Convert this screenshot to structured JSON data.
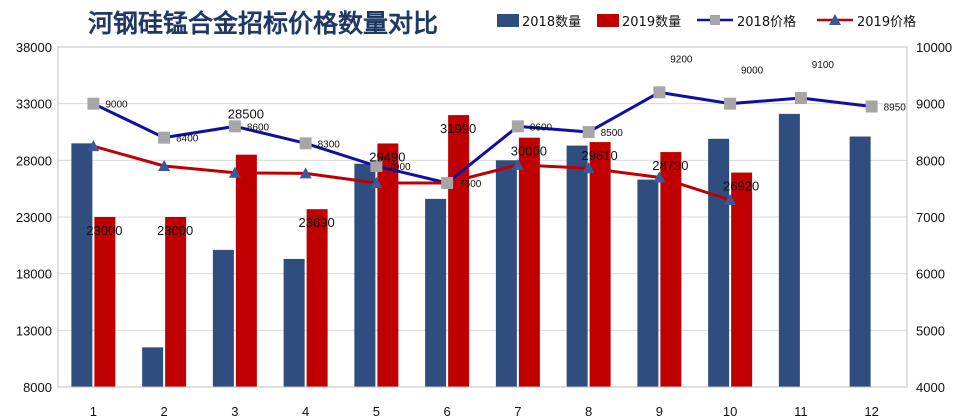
{
  "chart_data": {
    "type": "bar",
    "title": "河钢硅锰合金招标价格数量对比",
    "categories": [
      "1",
      "2",
      "3",
      "4",
      "5",
      "6",
      "7",
      "8",
      "9",
      "10",
      "11",
      "12"
    ],
    "ylim_left": [
      8000,
      38000
    ],
    "yticks_left": [
      "38000",
      "33000",
      "28000",
      "23000",
      "18000",
      "13000",
      "8000"
    ],
    "ylim_right": [
      4000,
      10000
    ],
    "yticks_right": [
      "10000",
      "9000",
      "8000",
      "7000",
      "6000",
      "5000",
      "4000"
    ],
    "grid": true,
    "legend": "top-right",
    "colors": {
      "qty2018": "#2f4d7e",
      "qty2019": "#c00000",
      "price2018": "#1010a0",
      "price2019": "#c00000",
      "marker2018": "#a6a6a6",
      "marker2019": "#3b5998"
    },
    "series": [
      {
        "name": "2018数量",
        "type": "bar",
        "axis": "left",
        "values": [
          29500,
          11500,
          20100,
          19300,
          27700,
          24600,
          28000,
          29300,
          26300,
          29900,
          32100,
          30100
        ]
      },
      {
        "name": "2019数量",
        "type": "bar",
        "axis": "left",
        "values": [
          23000,
          23000,
          28500,
          23690,
          29490,
          31990,
          30000,
          29610,
          28730,
          26920,
          null,
          null
        ],
        "labels": [
          "23000",
          "23000",
          "28500",
          "23690",
          "29490",
          "31990",
          "30000",
          "29610",
          "28730",
          "26920",
          "",
          ""
        ]
      },
      {
        "name": "2018价格",
        "type": "line",
        "axis": "right",
        "values": [
          9000,
          8400,
          8600,
          8300,
          7900,
          7600,
          8600,
          8500,
          9200,
          9000,
          9100,
          8950
        ],
        "labels": [
          "9000",
          "8400",
          "8600",
          "8300",
          "7900",
          "7600",
          "8600",
          "8500",
          "9200",
          "9000",
          "9100",
          "8950"
        ]
      },
      {
        "name": "2019价格",
        "type": "line",
        "axis": "right",
        "values": [
          8250,
          7900,
          7780,
          7770,
          7600,
          7600,
          7920,
          7860,
          7700,
          7300,
          null,
          null
        ]
      }
    ]
  }
}
